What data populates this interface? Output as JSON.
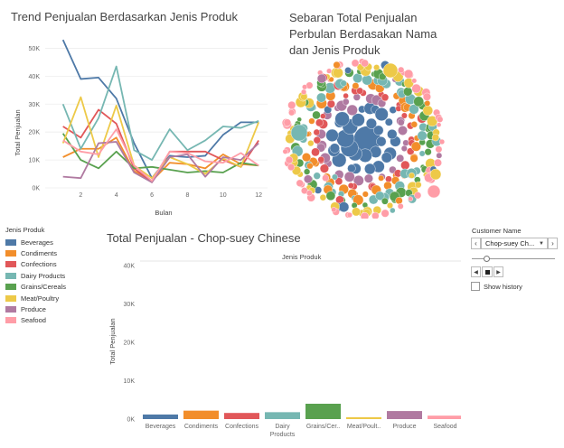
{
  "trend": {
    "title": "Trend Penjualan Berdasarkan Jenis Produk",
    "xlabel": "Bulan",
    "ylabel": "Total Penjualan",
    "y_ticks": [
      "0K",
      "10K",
      "20K",
      "30K",
      "40K",
      "50K"
    ],
    "x_ticks": [
      "2",
      "4",
      "6",
      "8",
      "10",
      "12"
    ]
  },
  "bubble": {
    "title_lines": [
      "Sebaran Total Penjualan",
      "Perbulan Berdasakan Nama",
      "dan Jenis Produk"
    ]
  },
  "legend": {
    "title": "Jenis Produk",
    "items": [
      {
        "label": "Beverages",
        "color": "#4e79a7"
      },
      {
        "label": "Condiments",
        "color": "#f28e2b"
      },
      {
        "label": "Confections",
        "color": "#e15759"
      },
      {
        "label": "Dairy Products",
        "color": "#76b7b2"
      },
      {
        "label": "Grains/Cereals",
        "color": "#59a14f"
      },
      {
        "label": "Meat/Poultry",
        "color": "#edc948"
      },
      {
        "label": "Produce",
        "color": "#b07aa1"
      },
      {
        "label": "Seafood",
        "color": "#ff9da7"
      }
    ]
  },
  "bar": {
    "title": "Total Penjualan - Chop-suey Chinese",
    "header": "Jenis Produk",
    "ylabel": "Total Penjualan",
    "y_ticks": [
      "0K",
      "10K",
      "20K",
      "30K",
      "40K"
    ],
    "categories": [
      "Beverages",
      "Condiments",
      "Confections",
      "Dairy\nProducts",
      "Grains/Cer..",
      "Meat/Poult..",
      "Produce",
      "Seafood"
    ]
  },
  "filter": {
    "label": "Customer Name",
    "value": "Chop-suey Ch...",
    "prev_icon": "chevron-left-icon",
    "next_icon": "chevron-right-icon",
    "show_history": "Show history"
  },
  "chart_data": [
    {
      "type": "line",
      "title": "Trend Penjualan Berdasarkan Jenis Produk",
      "xlabel": "Bulan",
      "ylabel": "Total Penjualan",
      "x": [
        1,
        2,
        3,
        4,
        5,
        6,
        7,
        8,
        9,
        10,
        11,
        12
      ],
      "ylim": [
        0,
        55000
      ],
      "xlim": [
        0,
        12.5
      ],
      "series": [
        {
          "name": "Beverages",
          "color": "#4e79a7",
          "values": [
            53000,
            39000,
            39500,
            32000,
            16000,
            3500,
            11500,
            11000,
            11500,
            19000,
            23500,
            23500
          ]
        },
        {
          "name": "Condiments",
          "color": "#f28e2b",
          "values": [
            11000,
            14000,
            14000,
            18000,
            6000,
            2500,
            9000,
            8500,
            7000,
            12000,
            8500,
            8000
          ]
        },
        {
          "name": "Confections",
          "color": "#e15759",
          "values": [
            22000,
            18000,
            28000,
            23000,
            7000,
            2000,
            13000,
            13000,
            13000,
            10000,
            7500,
            17000
          ]
        },
        {
          "name": "Dairy Products",
          "color": "#76b7b2",
          "values": [
            30000,
            14000,
            25000,
            43500,
            13500,
            10000,
            21000,
            13500,
            17000,
            22000,
            21500,
            24000
          ]
        },
        {
          "name": "Grains/Cereals",
          "color": "#59a14f",
          "values": [
            19500,
            10000,
            7000,
            13000,
            7000,
            7500,
            6500,
            5500,
            6000,
            5500,
            9000,
            8000
          ]
        },
        {
          "name": "Meat/Poultry",
          "color": "#edc948",
          "values": [
            16000,
            32500,
            11000,
            29500,
            8000,
            3500,
            11000,
            8500,
            5000,
            10500,
            7500,
            23500
          ]
        },
        {
          "name": "Produce",
          "color": "#b07aa1",
          "values": [
            4000,
            3500,
            16000,
            16500,
            5500,
            2000,
            11000,
            12000,
            4000,
            11000,
            10000,
            16000
          ]
        },
        {
          "name": "Seafood",
          "color": "#ff9da7",
          "values": [
            17000,
            13000,
            12000,
            21000,
            8000,
            2500,
            13000,
            12500,
            9500,
            9000,
            12500,
            8000
          ]
        }
      ]
    },
    {
      "type": "bar",
      "title": "Total Penjualan - Chop-suey Chinese",
      "ylabel": "Total Penjualan",
      "ylim": [
        0,
        40000
      ],
      "categories": [
        "Beverages",
        "Condiments",
        "Confections",
        "Dairy Products",
        "Grains/Cereals",
        "Meat/Poultry",
        "Produce",
        "Seafood"
      ],
      "values": [
        1200,
        2200,
        1600,
        1800,
        4000,
        500,
        2100,
        900
      ],
      "colors": [
        "#4e79a7",
        "#f28e2b",
        "#e15759",
        "#76b7b2",
        "#59a14f",
        "#edc948",
        "#b07aa1",
        "#ff9da7"
      ]
    }
  ]
}
